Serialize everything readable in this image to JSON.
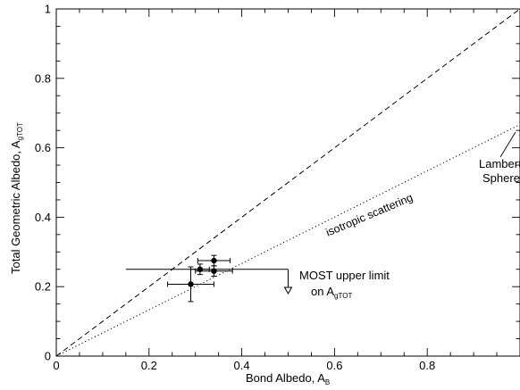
{
  "chart_data": {
    "type": "scatter",
    "title": "",
    "xlabel": "Bond Albedo, A",
    "xlabel_sub": "B",
    "ylabel": "Total Geometric Albedo, A",
    "ylabel_sub": "gTOT",
    "xlim": [
      0,
      1
    ],
    "ylim": [
      0,
      1
    ],
    "x_ticks": [
      0,
      0.2,
      0.4,
      0.6,
      0.8
    ],
    "x_tick_labels": [
      "0",
      "0.2",
      "0.4",
      "0.6",
      "0.8"
    ],
    "y_ticks": [
      0,
      0.2,
      0.4,
      0.6,
      0.8,
      1
    ],
    "y_tick_labels": [
      "0",
      "0.2",
      "0.4",
      "0.6",
      "0.8",
      "1"
    ],
    "grid": false,
    "lines": [
      {
        "id": "line-dashed",
        "style": "dashed",
        "x": [
          0,
          1
        ],
        "y": [
          0,
          1
        ]
      },
      {
        "id": "line-dotted-isotropic",
        "style": "dotted",
        "x": [
          0,
          1
        ],
        "y": [
          0,
          0.667
        ]
      }
    ],
    "points": [
      {
        "x": 0.29,
        "y": 0.207,
        "xerr": 0.05,
        "yerr": 0.05
      },
      {
        "x": 0.31,
        "y": 0.25,
        "xerr": 0.02,
        "yerr": 0.015
      },
      {
        "x": 0.34,
        "y": 0.245,
        "xerr": 0.04,
        "yerr": 0.015
      },
      {
        "x": 0.34,
        "y": 0.275,
        "xerr": 0.035,
        "yerr": 0.015
      }
    ],
    "upper_limit": {
      "y": 0.25,
      "x_from": 0.15,
      "x_to": 0.5,
      "arrow_to_y": 0.18
    },
    "annotations": {
      "isotropic": "isotropic scattering",
      "most_line1": "MOST upper limit",
      "most_line2": "on A",
      "most_sub": "gTOT",
      "lambert1": "Lambert",
      "lambert2": "Sphere"
    },
    "colors": {
      "axis": "#000000",
      "marker": "#000000"
    }
  }
}
